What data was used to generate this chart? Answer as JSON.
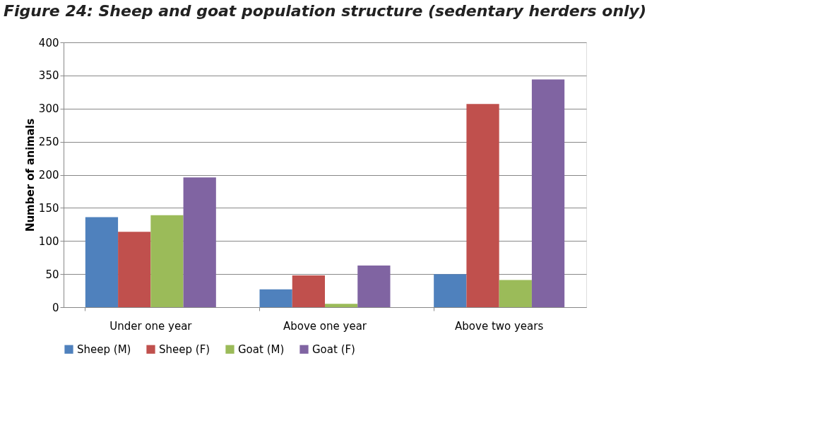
{
  "chart_data": {
    "type": "bar",
    "title": "Figure 24: Sheep and goat population structure (sedentary herders only)",
    "ylabel": "Number of animals",
    "categories": [
      "Under one year",
      "Above one year",
      "Above two years"
    ],
    "series": [
      {
        "name": "Sheep (M)",
        "color": "#4f81bd",
        "values": [
          136,
          27,
          50
        ]
      },
      {
        "name": "Sheep (F)",
        "color": "#c0504d",
        "values": [
          114,
          48,
          307
        ]
      },
      {
        "name": "Goat (M)",
        "color": "#9bbb59",
        "values": [
          139,
          5,
          41
        ]
      },
      {
        "name": "Goat (F)",
        "color": "#8064a2",
        "values": [
          196,
          63,
          344
        ]
      }
    ],
    "ylim": [
      0,
      400
    ],
    "yticks": [
      0,
      50,
      100,
      150,
      200,
      250,
      300,
      350,
      400
    ],
    "grid": "y",
    "legend": "bottom"
  }
}
